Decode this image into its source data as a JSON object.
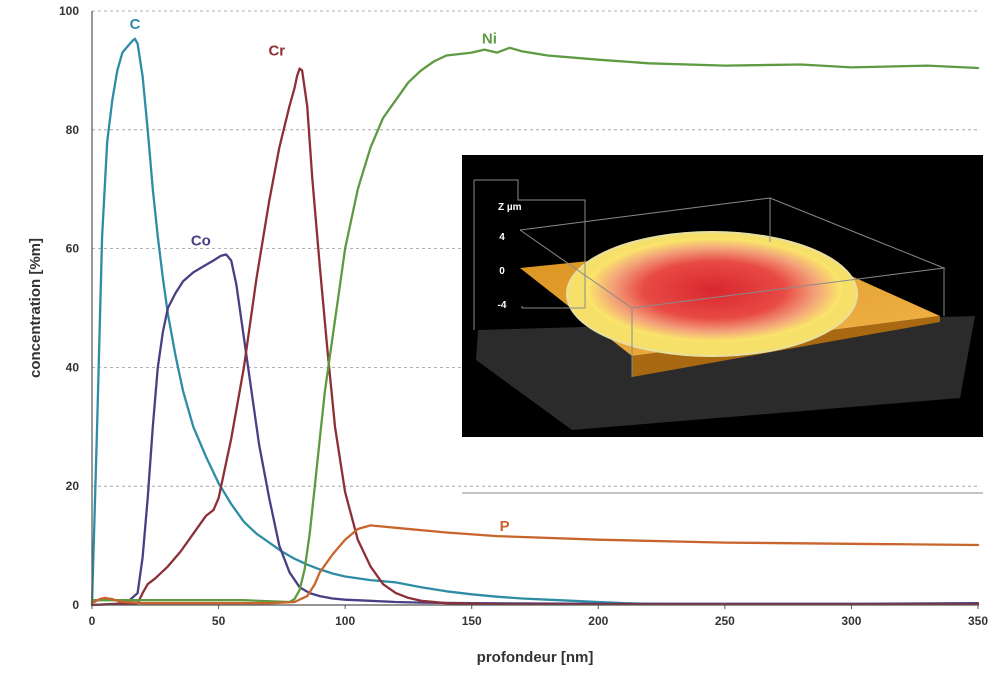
{
  "chart_data": {
    "type": "line",
    "xlabel": "profondeur [nm]",
    "ylabel": "concentration [%m]",
    "xlim": [
      0,
      350
    ],
    "ylim": [
      0,
      100
    ],
    "x_ticks": [
      0,
      50,
      100,
      150,
      200,
      250,
      300,
      350
    ],
    "y_ticks": [
      0,
      20,
      40,
      60,
      80,
      100
    ],
    "grid": "horizontal dashed",
    "series": [
      {
        "name": "C",
        "color": "#2e8da4",
        "label_at": [
          17,
          97
        ],
        "x": [
          0,
          2,
          4,
          6,
          8,
          10,
          12,
          14,
          16,
          17,
          18,
          20,
          22,
          24,
          26,
          28,
          30,
          33,
          36,
          40,
          45,
          50,
          55,
          60,
          65,
          70,
          75,
          80,
          85,
          90,
          95,
          100,
          110,
          120,
          130,
          140,
          150,
          160,
          170,
          180,
          190,
          200,
          210,
          220,
          250,
          300,
          350
        ],
        "y": [
          0,
          30,
          62,
          78,
          85,
          90,
          93,
          94,
          95,
          95.3,
          94.5,
          89,
          80,
          70,
          62,
          55,
          49,
          42,
          36,
          30,
          25,
          20.5,
          17,
          14,
          12,
          10.5,
          9,
          7.8,
          6.8,
          6,
          5.3,
          4.8,
          4.2,
          3.8,
          3,
          2.3,
          1.8,
          1.4,
          1.1,
          0.9,
          0.7,
          0.5,
          0.3,
          0.2,
          0.1,
          0.1,
          0.1
        ]
      },
      {
        "name": "Co",
        "color": "#4a3f84",
        "label_at": [
          43,
          60.5
        ],
        "x": [
          0,
          10,
          14,
          18,
          20,
          22,
          24,
          26,
          28,
          30,
          33,
          36,
          40,
          44,
          48,
          51,
          53,
          55,
          57,
          60,
          63,
          66,
          70,
          74,
          78,
          82,
          86,
          90,
          95,
          100,
          110,
          120,
          130,
          150,
          200,
          250,
          300,
          350
        ],
        "y": [
          0,
          0.2,
          0.5,
          2,
          8,
          18,
          30,
          40,
          46,
          50,
          52.5,
          54.5,
          56,
          57,
          58,
          58.8,
          59,
          58,
          54,
          45,
          36,
          27,
          18,
          10,
          5.5,
          3,
          2,
          1.5,
          1.1,
          0.9,
          0.7,
          0.5,
          0.4,
          0.3,
          0.2,
          0.2,
          0.2,
          0.3
        ]
      },
      {
        "name": "Cr",
        "color": "#8c2f36",
        "label_at": [
          73,
          92.5
        ],
        "x": [
          0,
          18,
          20,
          22,
          25,
          30,
          35,
          40,
          45,
          48,
          50,
          55,
          60,
          65,
          70,
          74,
          78,
          80,
          81,
          82,
          83,
          85,
          87,
          90,
          93,
          96,
          100,
          105,
          110,
          115,
          120,
          125,
          130,
          140,
          150,
          160,
          200,
          350
        ],
        "y": [
          0,
          0.3,
          2,
          3.5,
          4.5,
          6.5,
          9,
          12,
          15,
          16,
          18,
          28,
          40,
          55,
          68,
          77,
          84,
          87,
          89,
          90.3,
          90,
          84,
          72,
          57,
          43,
          30,
          19,
          11,
          6.5,
          3.5,
          2,
          1.2,
          0.7,
          0.3,
          0.2,
          0.1,
          0.1,
          0.1
        ]
      },
      {
        "name": "Ni",
        "color": "#5f9a43",
        "label_at": [
          157,
          94.5
        ],
        "x": [
          0,
          20,
          60,
          78,
          80,
          82,
          84,
          86,
          88,
          90,
          92,
          95,
          98,
          100,
          105,
          110,
          115,
          120,
          125,
          130,
          135,
          140,
          150,
          155,
          160,
          165,
          170,
          180,
          200,
          220,
          250,
          280,
          300,
          330,
          350
        ],
        "y": [
          0.8,
          0.8,
          0.8,
          0.5,
          1,
          2.5,
          6,
          12,
          20,
          28,
          36,
          45,
          54,
          60,
          70,
          77,
          82,
          85,
          88,
          90,
          91.5,
          92.5,
          93,
          93.5,
          93,
          93.8,
          93.2,
          92.5,
          91.8,
          91.2,
          90.8,
          91,
          90.5,
          90.8,
          90.4
        ]
      },
      {
        "name": "P",
        "color": "#c8642c",
        "label_at": [
          163,
          12.5
        ],
        "x": [
          0,
          3,
          5,
          8,
          10,
          12,
          20,
          30,
          50,
          70,
          80,
          85,
          88,
          90,
          95,
          100,
          105,
          110,
          120,
          140,
          160,
          200,
          250,
          300,
          350
        ],
        "y": [
          0.3,
          1,
          1.2,
          1,
          0.7,
          0.5,
          0.3,
          0.3,
          0.3,
          0.3,
          0.5,
          1.5,
          3.5,
          5.5,
          8.5,
          11,
          12.8,
          13.4,
          13,
          12.2,
          11.6,
          11,
          10.5,
          10.3,
          10.1
        ]
      }
    ],
    "inset": {
      "content": "3D surface profile",
      "axis_label": "Z µm",
      "z_ticks": [
        "4",
        "0",
        "-4"
      ]
    }
  }
}
